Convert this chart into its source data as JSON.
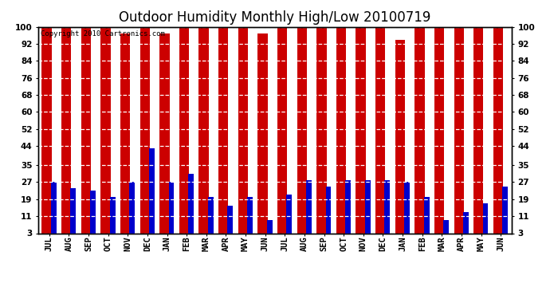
{
  "title": "Outdoor Humidity Monthly High/Low 20100719",
  "copyright_text": "Copyright 2010 Cartronics.com",
  "months": [
    "JUL",
    "AUG",
    "SEP",
    "OCT",
    "NOV",
    "DEC",
    "JAN",
    "FEB",
    "MAR",
    "APR",
    "MAY",
    "JUN",
    "JUL",
    "AUG",
    "SEP",
    "OCT",
    "NOV",
    "DEC",
    "JAN",
    "FEB",
    "MAR",
    "APR",
    "MAY",
    "JUN"
  ],
  "highs": [
    100,
    100,
    100,
    100,
    97,
    100,
    97,
    100,
    100,
    100,
    100,
    97,
    100,
    100,
    100,
    100,
    100,
    100,
    94,
    100,
    100,
    100,
    100,
    100
  ],
  "lows": [
    27,
    24,
    23,
    20,
    27,
    43,
    27,
    31,
    20,
    16,
    20,
    9,
    21,
    28,
    25,
    28,
    28,
    28,
    27,
    20,
    9,
    13,
    17,
    25
  ],
  "bar_color_high": "#cc0000",
  "bar_color_low": "#0000cc",
  "background_color": "#ffffff",
  "yticks": [
    3,
    11,
    19,
    27,
    35,
    44,
    52,
    60,
    68,
    76,
    84,
    92,
    100
  ],
  "ymin": 3,
  "ymax": 100,
  "red_bar_width": 0.5,
  "blue_bar_width": 0.28,
  "title_fontsize": 12,
  "tick_fontsize": 7.5,
  "copyright_fontsize": 6.5
}
